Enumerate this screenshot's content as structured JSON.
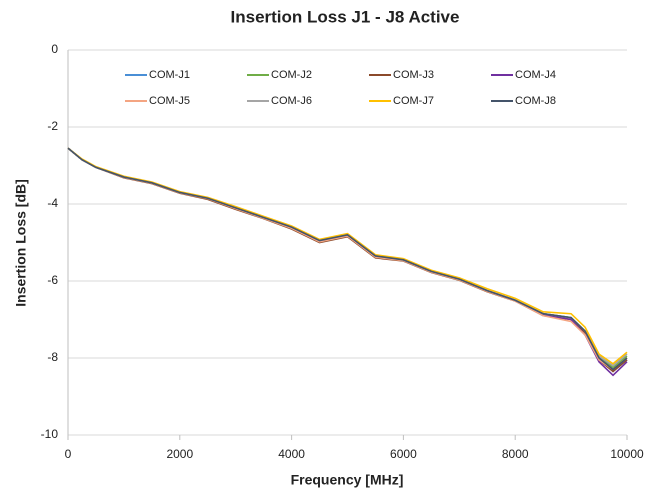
{
  "chart_data": {
    "type": "line",
    "title": "Insertion Loss J1 - J8 Active",
    "x_label": "Frequency [MHz]",
    "y_label": "Insertion Loss [dB]",
    "x": [
      0,
      250,
      500,
      1000,
      1500,
      2000,
      2500,
      3000,
      3500,
      4000,
      4500,
      5000,
      5500,
      6000,
      6500,
      7000,
      7500,
      8000,
      8500,
      9000,
      9250,
      9500,
      9750,
      10000
    ],
    "xlim": [
      0,
      10000
    ],
    "xticks": [
      0,
      2000,
      4000,
      6000,
      8000,
      10000
    ],
    "ylim": [
      -10,
      0
    ],
    "yticks": [
      0,
      -2,
      -4,
      -6,
      -8,
      -10
    ],
    "grid": true,
    "legend": "top",
    "series": [
      {
        "name": "COM-J1",
        "color": "#4a8fd6",
        "values": [
          -2.55,
          -2.85,
          -3.05,
          -3.3,
          -3.45,
          -3.7,
          -3.85,
          -4.1,
          -4.35,
          -4.6,
          -4.95,
          -4.8,
          -5.35,
          -5.45,
          -5.75,
          -5.95,
          -6.25,
          -6.5,
          -6.85,
          -6.95,
          -7.3,
          -8.0,
          -8.35,
          -8.05
        ]
      },
      {
        "name": "COM-J2",
        "color": "#70ad47",
        "values": [
          -2.55,
          -2.85,
          -3.05,
          -3.3,
          -3.45,
          -3.7,
          -3.85,
          -4.1,
          -4.35,
          -4.6,
          -4.95,
          -4.8,
          -5.35,
          -5.45,
          -5.75,
          -5.95,
          -6.25,
          -6.5,
          -6.85,
          -6.95,
          -7.3,
          -7.95,
          -8.25,
          -7.95
        ]
      },
      {
        "name": "COM-J3",
        "color": "#8b4a2b",
        "values": [
          -2.55,
          -2.85,
          -3.05,
          -3.32,
          -3.47,
          -3.72,
          -3.88,
          -4.14,
          -4.38,
          -4.65,
          -5.0,
          -4.85,
          -5.4,
          -5.48,
          -5.78,
          -5.98,
          -6.28,
          -6.52,
          -6.9,
          -7.0,
          -7.35,
          -8.05,
          -8.35,
          -8.05
        ]
      },
      {
        "name": "COM-J4",
        "color": "#7030a0",
        "values": [
          -2.55,
          -2.85,
          -3.05,
          -3.3,
          -3.45,
          -3.7,
          -3.85,
          -4.1,
          -4.35,
          -4.6,
          -4.95,
          -4.8,
          -5.35,
          -5.45,
          -5.75,
          -5.95,
          -6.25,
          -6.5,
          -6.88,
          -7.0,
          -7.4,
          -8.1,
          -8.45,
          -8.1
        ]
      },
      {
        "name": "COM-J5",
        "color": "#f4a582",
        "values": [
          -2.55,
          -2.85,
          -3.05,
          -3.31,
          -3.46,
          -3.71,
          -3.86,
          -4.12,
          -4.37,
          -4.63,
          -4.98,
          -4.83,
          -5.38,
          -5.47,
          -5.77,
          -5.97,
          -6.27,
          -6.52,
          -6.9,
          -7.05,
          -7.4,
          -8.05,
          -8.3,
          -8.0
        ]
      },
      {
        "name": "COM-J6",
        "color": "#a5a5a5",
        "values": [
          -2.55,
          -2.85,
          -3.05,
          -3.3,
          -3.45,
          -3.7,
          -3.85,
          -4.1,
          -4.35,
          -4.6,
          -4.95,
          -4.8,
          -5.35,
          -5.45,
          -5.75,
          -5.95,
          -6.25,
          -6.5,
          -6.85,
          -6.95,
          -7.3,
          -7.95,
          -8.2,
          -7.9
        ]
      },
      {
        "name": "COM-J7",
        "color": "#ffc000",
        "values": [
          -2.55,
          -2.83,
          -3.03,
          -3.28,
          -3.43,
          -3.68,
          -3.83,
          -4.07,
          -4.32,
          -4.57,
          -4.92,
          -4.77,
          -5.32,
          -5.42,
          -5.72,
          -5.92,
          -6.2,
          -6.45,
          -6.8,
          -6.85,
          -7.2,
          -7.9,
          -8.15,
          -7.85
        ]
      },
      {
        "name": "COM-J8",
        "color": "#44546a",
        "values": [
          -2.55,
          -2.85,
          -3.05,
          -3.3,
          -3.45,
          -3.7,
          -3.85,
          -4.1,
          -4.35,
          -4.6,
          -4.95,
          -4.8,
          -5.35,
          -5.45,
          -5.75,
          -5.95,
          -6.25,
          -6.5,
          -6.85,
          -6.95,
          -7.3,
          -8.0,
          -8.3,
          -8.0
        ]
      }
    ]
  }
}
